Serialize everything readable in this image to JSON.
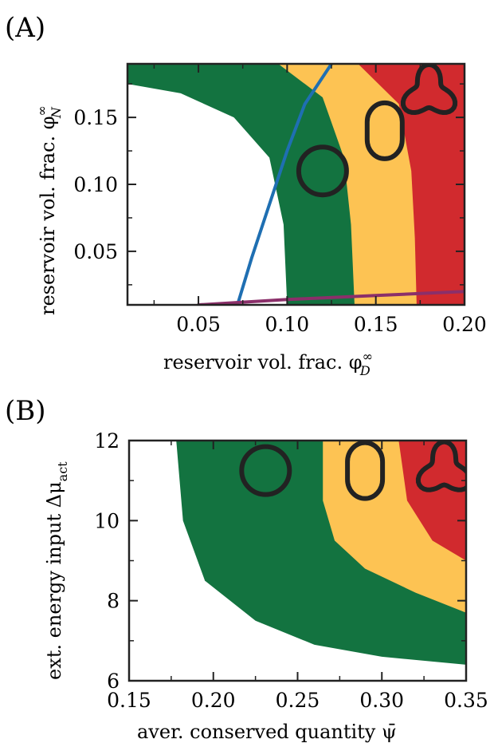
{
  "colors": {
    "white_region": "#ffffff",
    "green_region": "#137340",
    "yellow_region": "#fdc353",
    "red_region": "#d12a2e",
    "blue_line": "#1f6fb2",
    "purple_line": "#8b2f6a",
    "axis": "#222222"
  },
  "chart_data": [
    {
      "type": "heatmap",
      "panel_label": "(A)",
      "xlabel": "reservoir vol. frac. φ",
      "xlabel_sup": "∞",
      "xlabel_sub": "D",
      "ylabel": "reservoir vol. frac. φ",
      "ylabel_sup": "∞",
      "ylabel_sub": "N",
      "xlim": [
        0.01,
        0.2
      ],
      "ylim": [
        0.01,
        0.19
      ],
      "xticks": [
        0.05,
        0.1,
        0.15,
        0.2
      ],
      "xtick_labels": [
        "0.05",
        "0.10",
        "0.15",
        "0.20"
      ],
      "yticks": [
        0.05,
        0.1,
        0.15
      ],
      "ytick_labels": [
        "0.05",
        "0.10",
        "0.15"
      ],
      "regions": [
        "white",
        "green",
        "yellow",
        "red"
      ],
      "boundaries": {
        "white_green": [
          [
            0.01,
            0.175
          ],
          [
            0.04,
            0.168
          ],
          [
            0.07,
            0.15
          ],
          [
            0.09,
            0.12
          ],
          [
            0.098,
            0.07
          ],
          [
            0.1,
            0.01
          ]
        ],
        "green_yellow": [
          [
            0.095,
            0.19
          ],
          [
            0.12,
            0.165
          ],
          [
            0.132,
            0.12
          ],
          [
            0.136,
            0.07
          ],
          [
            0.138,
            0.01
          ]
        ],
        "yellow_red": [
          [
            0.14,
            0.19
          ],
          [
            0.163,
            0.16
          ],
          [
            0.17,
            0.11
          ],
          [
            0.172,
            0.06
          ],
          [
            0.173,
            0.01
          ]
        ]
      },
      "lines": [
        {
          "color_key": "blue_line",
          "x": [
            0.072,
            0.08,
            0.09,
            0.1,
            0.11,
            0.125
          ],
          "y": [
            0.01,
            0.045,
            0.085,
            0.125,
            0.16,
            0.19
          ]
        },
        {
          "color_key": "purple_line",
          "x": [
            0.05,
            0.1,
            0.15,
            0.2
          ],
          "y": [
            0.01,
            0.014,
            0.017,
            0.02
          ]
        }
      ],
      "shape_icons": [
        {
          "shape": "circle",
          "x": 0.12,
          "y": 0.11
        },
        {
          "shape": "oval",
          "x": 0.155,
          "y": 0.14
        },
        {
          "shape": "trefoil",
          "x": 0.18,
          "y": 0.168
        }
      ]
    },
    {
      "type": "heatmap",
      "panel_label": "(B)",
      "xlabel": "aver. conserved quantity ψ̄",
      "ylabel": "ext. energy input Δμ",
      "ylabel_sub": "act",
      "xlim": [
        0.15,
        0.35
      ],
      "ylim": [
        6,
        12
      ],
      "xticks": [
        0.15,
        0.2,
        0.25,
        0.3,
        0.35
      ],
      "xtick_labels": [
        "0.15",
        "0.20",
        "0.25",
        "0.30",
        "0.35"
      ],
      "yticks": [
        6,
        8,
        10,
        12
      ],
      "ytick_labels": [
        "6",
        "8",
        "10",
        "12"
      ],
      "regions": [
        "white",
        "green",
        "yellow",
        "red"
      ],
      "boundaries": {
        "white_green": [
          [
            0.178,
            12
          ],
          [
            0.182,
            10
          ],
          [
            0.195,
            8.5
          ],
          [
            0.225,
            7.5
          ],
          [
            0.26,
            6.9
          ],
          [
            0.3,
            6.6
          ],
          [
            0.35,
            6.4
          ]
        ],
        "green_yellow": [
          [
            0.265,
            12
          ],
          [
            0.265,
            10.5
          ],
          [
            0.272,
            9.5
          ],
          [
            0.29,
            8.8
          ],
          [
            0.32,
            8.2
          ],
          [
            0.35,
            7.7
          ]
        ],
        "yellow_red": [
          [
            0.31,
            12
          ],
          [
            0.315,
            10.5
          ],
          [
            0.33,
            9.5
          ],
          [
            0.35,
            9.0
          ]
        ]
      },
      "shape_icons": [
        {
          "shape": "circle",
          "x": 0.231,
          "y": 11.25
        },
        {
          "shape": "oval",
          "x": 0.29,
          "y": 11.25
        },
        {
          "shape": "trefoil",
          "x": 0.337,
          "y": 11.25
        }
      ]
    }
  ]
}
